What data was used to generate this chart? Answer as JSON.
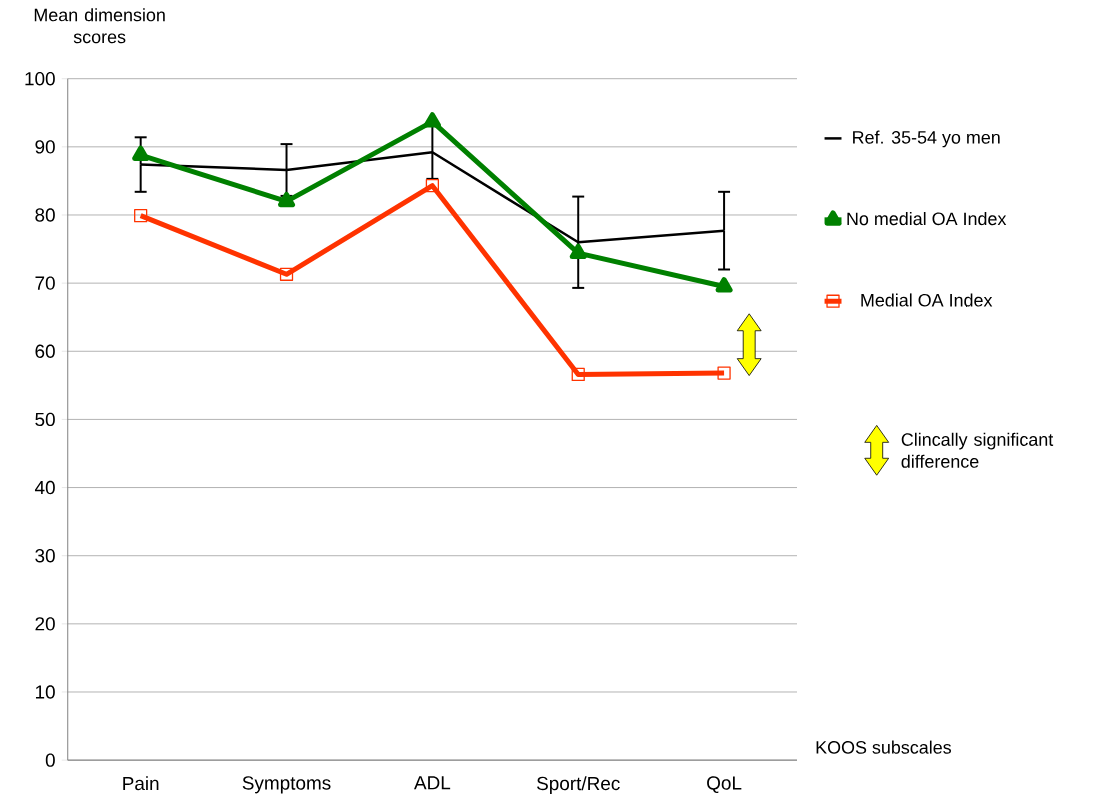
{
  "chart_data": {
    "type": "line",
    "ylabel": "Mean dimension scores",
    "categories": [
      "Pain",
      "Symptoms",
      "ADL",
      "Sport/Rec",
      "QoL"
    ],
    "series": [
      {
        "name": "Ref. 35-54 yo men",
        "color": "#000000",
        "marker": "none",
        "values": [
          87.4,
          86.6,
          89.2,
          76.0,
          77.7
        ],
        "errors": [
          4.0,
          3.8,
          3.9,
          6.7,
          5.7
        ]
      },
      {
        "name": "No medial OA Index",
        "color": "#008000",
        "marker": "triangle",
        "values": [
          88.8,
          82.0,
          93.7,
          74.4,
          69.5
        ]
      },
      {
        "name": "Medial OA Index",
        "color": "#ff3300",
        "marker": "square",
        "values": [
          79.9,
          71.3,
          84.3,
          56.6,
          56.8
        ]
      }
    ],
    "annotations": [
      "Clincally significant difference",
      "KOOS subscales"
    ],
    "ylim": [
      0,
      100
    ],
    "yticks": [
      0,
      10,
      20,
      30,
      40,
      50,
      60,
      70,
      80,
      90,
      100
    ],
    "grid": "y",
    "legend": "right",
    "line_style": "solid"
  }
}
